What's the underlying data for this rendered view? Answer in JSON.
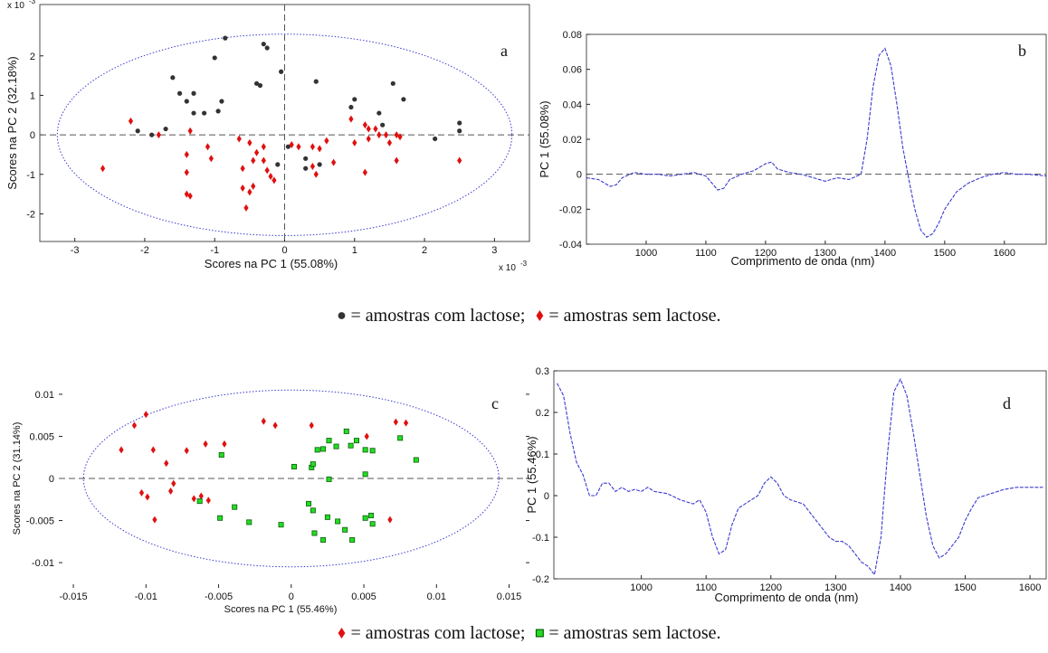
{
  "chart_data": [
    {
      "type": "scatter",
      "label": "a",
      "xlabel": "Scores na PC 1 (55.08%)",
      "ylabel": "Scores na PC 2 (32.18%)",
      "exponent_base": "x 10",
      "exponent": "-3",
      "xlim": [
        -3.5,
        3.5
      ],
      "ylim": [
        -2.7,
        3.3
      ],
      "xticks": [
        -3,
        -2,
        -1,
        0,
        1,
        2,
        3
      ],
      "yticks": [
        -2,
        -1,
        0,
        1,
        2
      ],
      "box": true,
      "hline": 0,
      "vline": 0,
      "ellipse": {
        "cx": 0,
        "cy": 0,
        "rx": 3.25,
        "ry": 2.55,
        "color": "#3b3bd0"
      },
      "series": [
        {
          "name": "= amostras com lactose;",
          "color": "#333333",
          "marker": "circle",
          "x": [
            -0.85,
            -0.3,
            -0.25,
            -1.0,
            -1.6,
            -1.5,
            -1.3,
            -1.4,
            -1.15,
            -1.3,
            -0.9,
            -0.95,
            -1.7,
            -2.1,
            -1.9,
            -0.4,
            -0.35,
            -0.05,
            0.45,
            0.95,
            1.0,
            1.35,
            1.4,
            1.55,
            1.7,
            2.15,
            2.5,
            2.5,
            0.05,
            0.3,
            0.3,
            0.5,
            -0.1
          ],
          "y": [
            2.45,
            2.3,
            2.2,
            1.95,
            1.45,
            1.05,
            1.05,
            0.85,
            0.55,
            0.55,
            0.85,
            0.6,
            0.15,
            0.1,
            0.0,
            1.3,
            1.25,
            1.6,
            1.35,
            0.7,
            0.9,
            0.55,
            0.25,
            1.3,
            0.9,
            -0.1,
            0.1,
            0.3,
            -0.3,
            -0.6,
            -0.85,
            -0.75,
            -0.75
          ]
        },
        {
          "name": "= amostras sem lactose.",
          "color": "#e01010",
          "marker": "diamond",
          "x": [
            -2.6,
            -2.2,
            -1.8,
            -1.35,
            -1.4,
            -1.4,
            -1.4,
            -1.35,
            -1.1,
            -1.05,
            -0.65,
            -0.6,
            -0.6,
            -0.55,
            -0.5,
            -0.45,
            -0.4,
            -0.45,
            -0.5,
            -0.3,
            -0.3,
            -0.2,
            -0.25,
            -0.15,
            0.1,
            0.2,
            0.4,
            0.5,
            0.6,
            0.7,
            0.4,
            0.45,
            0.95,
            1.0,
            1.15,
            1.2,
            1.3,
            1.2,
            1.35,
            1.45,
            1.5,
            1.6,
            1.65,
            1.6,
            1.15,
            2.5
          ],
          "y": [
            -0.85,
            0.35,
            0.0,
            0.1,
            -0.5,
            -0.95,
            -1.5,
            -1.55,
            -0.3,
            -0.6,
            -0.1,
            -0.85,
            -1.35,
            -1.85,
            -0.2,
            -0.65,
            -0.45,
            -1.3,
            -1.45,
            -0.3,
            -0.65,
            -1.05,
            -0.9,
            -1.15,
            -0.25,
            -0.3,
            -0.3,
            -0.35,
            -0.15,
            -0.7,
            -0.8,
            -1.0,
            0.4,
            -0.2,
            0.25,
            0.15,
            0.15,
            -0.1,
            0.0,
            0.0,
            -0.2,
            0.0,
            -0.05,
            -0.65,
            -0.95,
            -0.65
          ]
        }
      ]
    },
    {
      "type": "line",
      "label": "b",
      "xlabel": "Comprimento de onda (nm)",
      "ylabel": "PC 1 (55.08%)",
      "xlim": [
        900,
        1670
      ],
      "ylim": [
        -0.04,
        0.08
      ],
      "xticks": [
        1000,
        1100,
        1200,
        1300,
        1400,
        1500,
        1600
      ],
      "yticks": [
        -0.04,
        -0.02,
        0,
        0.02,
        0.04,
        0.06,
        0.08
      ],
      "box": true,
      "hline": 0,
      "color": "#3b3bd0",
      "x": [
        900,
        920,
        940,
        950,
        960,
        980,
        1000,
        1020,
        1040,
        1060,
        1080,
        1100,
        1120,
        1130,
        1140,
        1160,
        1180,
        1200,
        1210,
        1220,
        1240,
        1260,
        1280,
        1300,
        1320,
        1340,
        1360,
        1370,
        1380,
        1390,
        1400,
        1410,
        1420,
        1430,
        1440,
        1450,
        1460,
        1470,
        1480,
        1490,
        1500,
        1520,
        1540,
        1560,
        1580,
        1600,
        1620,
        1640,
        1670
      ],
      "values": [
        -0.002,
        -0.003,
        -0.007,
        -0.006,
        -0.002,
        0.001,
        0,
        0,
        -0.001,
        0,
        0.001,
        -0.001,
        -0.009,
        -0.008,
        -0.003,
        0,
        0.002,
        0.006,
        0.007,
        0.003,
        0.001,
        0,
        -0.002,
        -0.004,
        -0.002,
        -0.003,
        0,
        0.02,
        0.05,
        0.068,
        0.072,
        0.062,
        0.04,
        0.015,
        -0.003,
        -0.02,
        -0.032,
        -0.036,
        -0.034,
        -0.028,
        -0.02,
        -0.01,
        -0.005,
        -0.002,
        0,
        0.001,
        0,
        0,
        -0.001
      ]
    },
    {
      "type": "scatter",
      "label": "c",
      "xlabel": "Scores na PC 1 (55.46%)",
      "ylabel": "Scores na PC 2 (31.14%)",
      "xlim": [
        -0.016,
        0.0164
      ],
      "ylim": [
        -0.013,
        0.013
      ],
      "xticks": [
        -0.015,
        -0.01,
        -0.005,
        0,
        0.005,
        0.01,
        0.015
      ],
      "yticks": [
        -0.01,
        -0.005,
        0,
        0.005,
        0.01
      ],
      "box": false,
      "hline": 0,
      "ellipse": {
        "cx": 0,
        "cy": 0,
        "rx": 0.0143,
        "ry": 0.0105,
        "color": "#3b3bd0"
      },
      "series": [
        {
          "name": "= amostras com lactose;",
          "color": "#e01010",
          "marker": "diamond",
          "x": [
            -0.0108,
            -0.01,
            -0.0117,
            -0.0095,
            -0.0103,
            -0.0099,
            -0.0094,
            -0.0086,
            -0.0081,
            -0.0083,
            -0.0072,
            -0.0067,
            -0.0062,
            -0.0057,
            -0.0059,
            -0.0046,
            -0.0019,
            -0.0011,
            0.0014,
            0.0052,
            0.0072,
            0.0079,
            0.0068
          ],
          "y": [
            0.0063,
            0.0076,
            0.0034,
            0.0034,
            -0.0017,
            -0.0022,
            -0.0049,
            0.0018,
            -0.0006,
            -0.0015,
            0.0033,
            -0.0024,
            -0.0021,
            -0.0026,
            0.0041,
            0.0041,
            0.0068,
            0.0063,
            0.0063,
            0.005,
            0.0067,
            0.0066,
            -0.0049
          ]
        },
        {
          "name": "= amostras sem lactose.",
          "color": "#22dd22",
          "marker": "square",
          "x": [
            -0.0048,
            -0.0063,
            -0.0049,
            -0.0039,
            -0.0029,
            -0.0007,
            0.0014,
            0.0015,
            0.0018,
            0.0022,
            0.0026,
            0.0031,
            0.0038,
            0.0041,
            0.0045,
            0.0051,
            0.0056,
            0.0075,
            0.0086,
            0.0002,
            0.0026,
            0.0051,
            0.0012,
            0.0015,
            0.0025,
            0.0032,
            0.0037,
            0.0042,
            0.0051,
            0.0055,
            0.0056,
            0.0016,
            0.0022
          ],
          "y": [
            0.0028,
            -0.0027,
            -0.0047,
            -0.0034,
            -0.0052,
            -0.0055,
            0.0013,
            0.0017,
            0.0034,
            0.0035,
            0.0045,
            0.0038,
            0.0056,
            0.0039,
            0.0045,
            0.0034,
            0.0033,
            0.0048,
            0.0022,
            0.0014,
            -0.0001,
            0.0005,
            -0.003,
            -0.0038,
            -0.0046,
            -0.0051,
            -0.0061,
            -0.0073,
            -0.0047,
            -0.0044,
            -0.0054,
            -0.0065,
            -0.0073
          ]
        }
      ]
    },
    {
      "type": "line",
      "label": "d",
      "xlabel": "Comprimento de onda (nm)",
      "ylabel": "PC 1 (55.46%)",
      "xlim": [
        865,
        1625
      ],
      "ylim": [
        -0.2,
        0.3
      ],
      "xticks": [
        1000,
        1100,
        1200,
        1300,
        1400,
        1500,
        1600
      ],
      "yticks": [
        -0.2,
        -0.1,
        0,
        0.1,
        0.2,
        0.3
      ],
      "box": true,
      "color": "#3b3bd0",
      "x": [
        870,
        880,
        890,
        900,
        910,
        920,
        930,
        940,
        950,
        960,
        970,
        980,
        990,
        1000,
        1010,
        1020,
        1040,
        1060,
        1080,
        1090,
        1100,
        1110,
        1120,
        1130,
        1140,
        1150,
        1160,
        1170,
        1180,
        1190,
        1200,
        1210,
        1220,
        1230,
        1240,
        1250,
        1260,
        1270,
        1280,
        1290,
        1300,
        1310,
        1320,
        1330,
        1340,
        1350,
        1360,
        1370,
        1380,
        1390,
        1400,
        1410,
        1420,
        1430,
        1440,
        1450,
        1460,
        1470,
        1480,
        1490,
        1500,
        1510,
        1520,
        1540,
        1560,
        1580,
        1600,
        1620
      ],
      "values": [
        0.27,
        0.24,
        0.15,
        0.08,
        0.05,
        0.0,
        0.0,
        0.03,
        0.03,
        0.01,
        0.02,
        0.01,
        0.015,
        0.01,
        0.02,
        0.01,
        0.005,
        -0.01,
        -0.02,
        -0.01,
        -0.04,
        -0.1,
        -0.14,
        -0.13,
        -0.07,
        -0.03,
        -0.02,
        -0.01,
        0,
        0.03,
        0.045,
        0.03,
        0,
        -0.01,
        -0.015,
        -0.02,
        -0.04,
        -0.06,
        -0.08,
        -0.1,
        -0.11,
        -0.11,
        -0.12,
        -0.14,
        -0.16,
        -0.17,
        -0.19,
        -0.1,
        0.1,
        0.25,
        0.28,
        0.24,
        0.15,
        0.05,
        -0.05,
        -0.12,
        -0.15,
        -0.14,
        -0.12,
        -0.1,
        -0.06,
        -0.03,
        -0.005,
        0.005,
        0.015,
        0.02,
        0.02,
        0.02
      ]
    }
  ]
}
